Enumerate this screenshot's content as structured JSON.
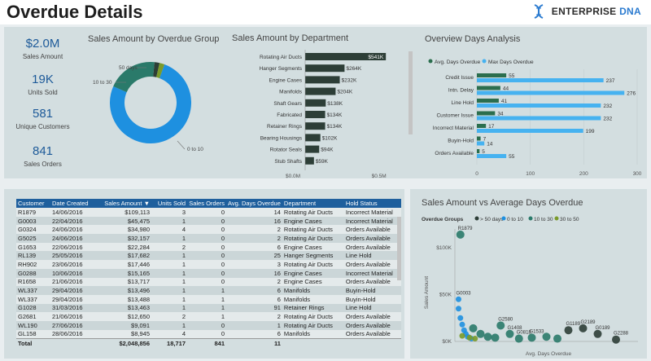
{
  "header": {
    "title": "Overdue Details",
    "logo_main": "ENTERPRISE",
    "logo_accent": "DNA"
  },
  "kpis": [
    {
      "value": "$2.0M",
      "label": "Sales Amount"
    },
    {
      "value": "19K",
      "label": "Units Sold"
    },
    {
      "value": "581",
      "label": "Unique Customers"
    },
    {
      "value": "841",
      "label": "Sales Orders"
    }
  ],
  "colors": {
    "blue": "#1e90e0",
    "teal": "#2a7a6a",
    "olive": "#7a9a2a",
    "dark": "#2d3e37",
    "lightblue": "#46b2f0",
    "darkgreen": "#2b6e4e",
    "header_blue": "#1e5f9d"
  },
  "chart_data": [
    {
      "type": "pie",
      "title": "Sales Amount by Overdue Group",
      "categories": [
        "0 to 10",
        "10 to 30",
        "> 50 days",
        "30 to 50"
      ],
      "values": [
        76,
        20,
        2,
        2
      ],
      "labels": [
        "0 to 10",
        "10 to 30",
        "50 days",
        ""
      ]
    },
    {
      "type": "bar",
      "title": "Sales Amount by Department",
      "categories": [
        "Rotating Air Ducts",
        "Hanger Segments",
        "Engine Cases",
        "Manifolds",
        "Shaft Gears",
        "Fabricated",
        "Retainer Rings",
        "Bearing Housings",
        "Rotator Seals",
        "Stub Shafts"
      ],
      "values": [
        541,
        264,
        232,
        204,
        138,
        134,
        134,
        102,
        94,
        59
      ],
      "data_labels": [
        "$541K",
        "$264K",
        "$232K",
        "$204K",
        "$138K",
        "$134K",
        "$134K",
        "$102K",
        "$94K",
        "$59K"
      ],
      "xticks": [
        "$0.0M",
        "$0.5M"
      ],
      "xlim": [
        0,
        600
      ]
    },
    {
      "type": "bar",
      "title": "Overview Days Analysis",
      "categories": [
        "Credit Issue",
        "Intn. Delay",
        "Line Hold",
        "Customer Issue",
        "Incorrect Material",
        "Buyin-Hold",
        "Orders Available"
      ],
      "series": [
        {
          "name": "Avg. Days Overdue",
          "values": [
            55,
            44,
            41,
            34,
            17,
            7,
            5
          ]
        },
        {
          "name": "Max Days Overdue",
          "values": [
            237,
            276,
            232,
            232,
            199,
            14,
            55
          ]
        }
      ],
      "xticks": [
        "0",
        "100",
        "200",
        "300"
      ],
      "xlim": [
        0,
        300
      ]
    },
    {
      "type": "scatter",
      "title": "Sales Amount vs Average Days Overdue",
      "legend_title": "Overdue Groups",
      "legend": [
        "> 50 days",
        "0 to 10",
        "10 to 30",
        "30 to 50"
      ],
      "xlabel": "Avg. Days Overdue",
      "ylabel": "Sales Amount",
      "yticks": [
        "$100K",
        "$50K",
        "$0K"
      ],
      "xlim": [
        0,
        100
      ],
      "ylim": [
        0,
        120
      ],
      "labeled_points": [
        "R1879",
        "G0003",
        "G2580",
        "G1408",
        "G0818",
        "G1533",
        "G1189",
        "G2189",
        "G0189",
        "G2288"
      ],
      "points": [
        {
          "x": 3,
          "y": 114,
          "g": 2,
          "label": "R1879"
        },
        {
          "x": 2,
          "y": 45,
          "g": 1,
          "label": "G0003"
        },
        {
          "x": 2,
          "y": 35,
          "g": 1,
          "label": ""
        },
        {
          "x": 3,
          "y": 25,
          "g": 1,
          "label": ""
        },
        {
          "x": 4,
          "y": 18,
          "g": 1,
          "label": ""
        },
        {
          "x": 5,
          "y": 12,
          "g": 1,
          "label": ""
        },
        {
          "x": 6,
          "y": 8,
          "g": 1,
          "label": ""
        },
        {
          "x": 7,
          "y": 5,
          "g": 1,
          "label": ""
        },
        {
          "x": 9,
          "y": 3,
          "g": 1,
          "label": ""
        },
        {
          "x": 4,
          "y": 6,
          "g": 3,
          "label": ""
        },
        {
          "x": 8,
          "y": 4,
          "g": 3,
          "label": ""
        },
        {
          "x": 11,
          "y": 3,
          "g": 3,
          "label": ""
        },
        {
          "x": 10,
          "y": 14,
          "g": 2,
          "label": ""
        },
        {
          "x": 14,
          "y": 8,
          "g": 2,
          "label": ""
        },
        {
          "x": 18,
          "y": 5,
          "g": 2,
          "label": ""
        },
        {
          "x": 22,
          "y": 4,
          "g": 2,
          "label": ""
        },
        {
          "x": 25,
          "y": 17,
          "g": 2,
          "label": "G2580"
        },
        {
          "x": 30,
          "y": 8,
          "g": 2,
          "label": "G1408"
        },
        {
          "x": 35,
          "y": 3,
          "g": 2,
          "label": "G0818"
        },
        {
          "x": 42,
          "y": 4,
          "g": 2,
          "label": "G1533"
        },
        {
          "x": 50,
          "y": 5,
          "g": 2,
          "label": ""
        },
        {
          "x": 56,
          "y": 3,
          "g": 2,
          "label": ""
        },
        {
          "x": 62,
          "y": 12,
          "g": 0,
          "label": "G1189"
        },
        {
          "x": 70,
          "y": 14,
          "g": 0,
          "label": "G2189"
        },
        {
          "x": 78,
          "y": 8,
          "g": 0,
          "label": "G0189"
        },
        {
          "x": 88,
          "y": 2,
          "g": 0,
          "label": "G2288"
        }
      ]
    }
  ],
  "table": {
    "columns": [
      "Customer",
      "Date Created",
      "Sales Amount",
      "Units Sold",
      "Sales Orders",
      "Avg. Days Overdue",
      "Department",
      "Hold Status"
    ],
    "sort_icon": "sort-desc-icon",
    "rows": [
      [
        "R1879",
        "14/06/2016",
        "$109,113",
        "3",
        "0",
        "14",
        "Rotating Air Ducts",
        "Incorrect Material"
      ],
      [
        "G0003",
        "22/04/2016",
        "$45,475",
        "1",
        "0",
        "16",
        "Engine Cases",
        "Incorrect Material"
      ],
      [
        "G0324",
        "24/06/2016",
        "$34,980",
        "4",
        "0",
        "2",
        "Rotating Air Ducts",
        "Orders Available"
      ],
      [
        "G5025",
        "24/06/2016",
        "$32,157",
        "1",
        "0",
        "2",
        "Rotating Air Ducts",
        "Orders Available"
      ],
      [
        "G1653",
        "22/06/2016",
        "$22,284",
        "2",
        "0",
        "6",
        "Engine Cases",
        "Orders Available"
      ],
      [
        "RL139",
        "25/05/2016",
        "$17,682",
        "1",
        "0",
        "25",
        "Hanger Segments",
        "Line Hold"
      ],
      [
        "RH902",
        "23/06/2016",
        "$17,446",
        "1",
        "0",
        "3",
        "Rotating Air Ducts",
        "Orders Available"
      ],
      [
        "G0288",
        "10/06/2016",
        "$15,165",
        "1",
        "0",
        "16",
        "Engine Cases",
        "Incorrect Material"
      ],
      [
        "R1658",
        "21/06/2016",
        "$13,717",
        "1",
        "0",
        "2",
        "Engine Cases",
        "Orders Available"
      ],
      [
        "WL337",
        "29/04/2016",
        "$13,496",
        "1",
        "1",
        "6",
        "Manifolds",
        "Buyin-Hold"
      ],
      [
        "WL337",
        "29/04/2016",
        "$13,488",
        "1",
        "1",
        "6",
        "Manifolds",
        "Buyin-Hold"
      ],
      [
        "G1028",
        "31/03/2016",
        "$13,463",
        "1",
        "1",
        "91",
        "Retainer Rings",
        "Line Hold"
      ],
      [
        "G2681",
        "21/06/2016",
        "$12,650",
        "2",
        "1",
        "2",
        "Rotating Air Ducts",
        "Orders Available"
      ],
      [
        "WL190",
        "27/06/2016",
        "$9,091",
        "1",
        "0",
        "1",
        "Rotating Air Ducts",
        "Orders Available"
      ],
      [
        "GL158",
        "28/06/2016",
        "$8,945",
        "4",
        "0",
        "6",
        "Manifolds",
        "Orders Available"
      ]
    ],
    "total": [
      "Total",
      "",
      "$2,048,856",
      "18,717",
      "841",
      "11",
      "",
      ""
    ]
  }
}
